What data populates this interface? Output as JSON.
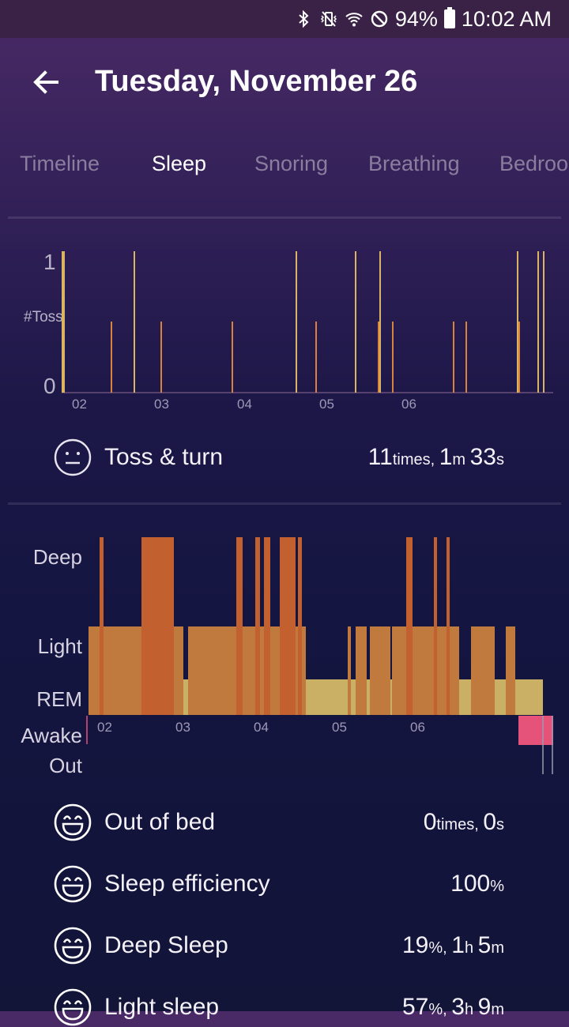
{
  "status_bar": {
    "battery": "94%",
    "time": "10:02 AM"
  },
  "header": {
    "title": "Tuesday, November 26"
  },
  "tabs": [
    {
      "label": "Timeline",
      "active": false
    },
    {
      "label": "Sleep",
      "active": true
    },
    {
      "label": "Snoring",
      "active": false
    },
    {
      "label": "Breathing",
      "active": false
    },
    {
      "label": "Bedroo",
      "active": false
    }
  ],
  "toss_chart": {
    "y_label": "#Toss",
    "y_ticks": [
      "1",
      "0"
    ],
    "x_ticks": [
      "02",
      "03",
      "04",
      "05",
      "06"
    ]
  },
  "toss_summary": {
    "label": "Toss & turn",
    "value_times": "11",
    "unit_times": "times, ",
    "value_min": "1",
    "unit_min": "m ",
    "value_sec": "33",
    "unit_sec": "s"
  },
  "stage_chart": {
    "stages": [
      "Deep",
      "Light",
      "REM",
      "Awake",
      "Out"
    ],
    "x_ticks": [
      "02",
      "03",
      "04",
      "05",
      "06"
    ]
  },
  "stats": [
    {
      "label": "Out of bed",
      "parts": [
        [
          "0",
          "times, "
        ],
        [
          "0",
          "s"
        ]
      ]
    },
    {
      "label": "Sleep efficiency",
      "parts": [
        [
          "100",
          "%"
        ]
      ]
    },
    {
      "label": "Deep Sleep",
      "parts": [
        [
          "19",
          "%, "
        ],
        [
          "1",
          "h "
        ],
        [
          "5",
          "m"
        ]
      ]
    },
    {
      "label": "Light sleep",
      "parts": [
        [
          "57",
          "%, "
        ],
        [
          "3",
          "h "
        ],
        [
          "9",
          "m"
        ]
      ]
    }
  ],
  "colors": {
    "deep": "#c2602f",
    "light": "#c07a3e",
    "rem": "#c9b065",
    "awake": "#e5527a",
    "tick_orange": "#d9823d",
    "tick_yellow": "#d9b462"
  }
}
